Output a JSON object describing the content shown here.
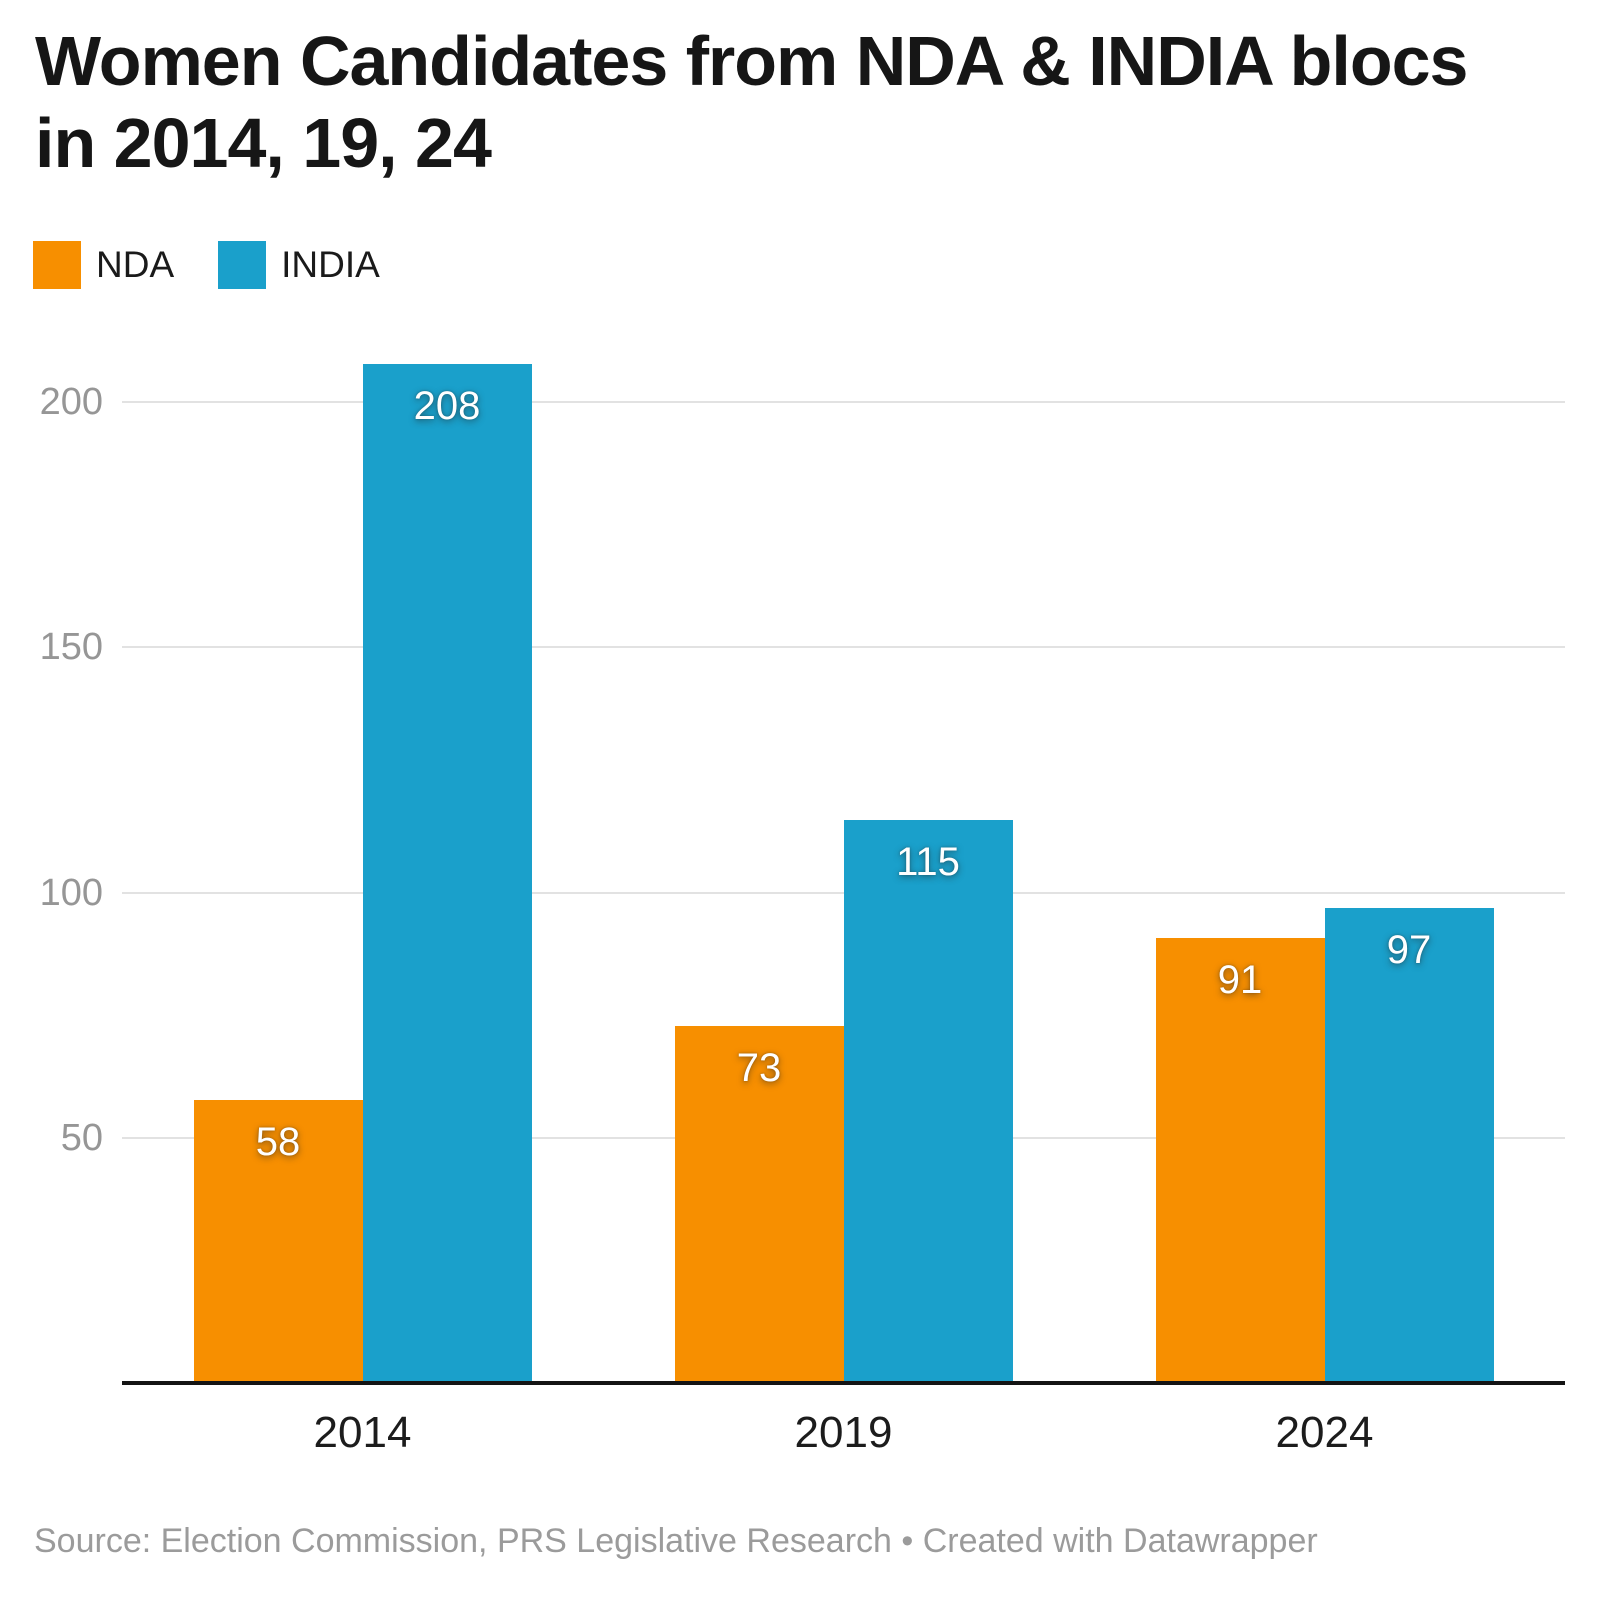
{
  "title_lines": [
    "Women Candidates from NDA & INDIA blocs",
    "in 2014, 19, 24"
  ],
  "source": "Source: Election Commission, PRS Legislative Research • Created with Datawrapper",
  "chart_data": {
    "type": "bar",
    "title": "Women Candidates from NDA & INDIA blocs in 2014, 19, 24",
    "categories": [
      "2014",
      "2019",
      "2024"
    ],
    "series": [
      {
        "name": "NDA",
        "color": "#f78f00",
        "values": [
          58,
          73,
          91
        ]
      },
      {
        "name": "INDIA",
        "color": "#1aa0cb",
        "values": [
          208,
          115,
          97
        ]
      }
    ],
    "y_ticks": [
      50,
      100,
      150,
      200
    ],
    "ylim": [
      0,
      210
    ],
    "xlabel": "",
    "ylabel": "",
    "grid": "horizontal",
    "legend_position": "top-left",
    "value_labels": "inside-top",
    "axis_text_color": "#969696",
    "gridline_color": "#e2e2e2",
    "baseline_color": "#141414"
  }
}
